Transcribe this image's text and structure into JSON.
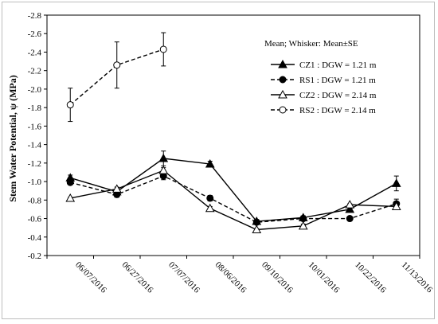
{
  "chart_data": {
    "type": "line",
    "ylabel": "Stem Water Potential, ψ (MPa)",
    "ylim": [
      -2.8,
      -0.2
    ],
    "y_axis_reversed": true,
    "ytick_step": 0.2,
    "grid": false,
    "categories": [
      "06/07/2016",
      "06/27/2016",
      "07/07/2016",
      "08/06/2016",
      "09/10/2016",
      "10/01/2016",
      "10/22/2016",
      "11/13/2016"
    ],
    "legend": {
      "title": "Mean; Whisker: Mean±SE",
      "placement": "top-right"
    },
    "series": [
      {
        "name": "CZ1 : DGW = 1.21 m",
        "line": "solid",
        "marker": "triangle-filled",
        "values": [
          -1.04,
          -0.89,
          -1.25,
          -1.19,
          -0.57,
          -0.61,
          -0.7,
          -0.98
        ],
        "se": [
          0.03,
          0.03,
          0.08,
          0.03,
          0.02,
          0.02,
          0.02,
          0.08
        ]
      },
      {
        "name": "RS1 : DGW = 1.21 m",
        "line": "dashed",
        "marker": "circle-filled",
        "values": [
          -0.99,
          -0.86,
          -1.06,
          -0.82,
          -0.56,
          -0.6,
          -0.6,
          -0.76
        ],
        "se": [
          0.02,
          0.03,
          0.04,
          0.03,
          0.02,
          0.02,
          0.01,
          0.05
        ]
      },
      {
        "name": "CZ2 : DGW = 2.14 m",
        "line": "solid",
        "marker": "triangle-open",
        "values": [
          -0.82,
          -0.92,
          -1.12,
          -0.71,
          -0.48,
          -0.52,
          -0.75,
          -0.73
        ],
        "se": [
          0.01,
          0.02,
          0.03,
          0.02,
          0.01,
          0.02,
          0.01,
          0.02
        ]
      },
      {
        "name": "RS2 : DGW = 2.14 m",
        "line": "dashed",
        "marker": "circle-open",
        "values": [
          -1.83,
          -2.26,
          -2.43,
          null,
          null,
          null,
          null,
          null
        ],
        "se": [
          0.18,
          0.25,
          0.18,
          null,
          null,
          null,
          null,
          null
        ]
      }
    ]
  }
}
